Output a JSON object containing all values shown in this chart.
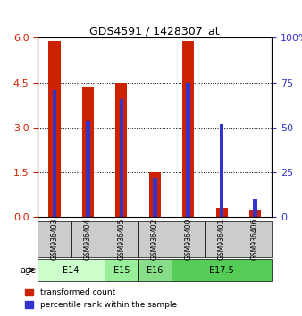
{
  "title": "GDS4591 / 1428307_at",
  "samples": [
    "GSM936403",
    "GSM936404",
    "GSM936405",
    "GSM936402",
    "GSM936400",
    "GSM936401",
    "GSM936406"
  ],
  "transformed_count": [
    5.9,
    4.35,
    4.5,
    1.5,
    5.9,
    0.3,
    0.25
  ],
  "percentile_rank": [
    71,
    54,
    66,
    22,
    75,
    52,
    10
  ],
  "ylim_left": [
    0,
    6
  ],
  "yticks_left": [
    0,
    1.5,
    3,
    4.5,
    6
  ],
  "ylim_right": [
    0,
    100
  ],
  "yticks_right": [
    0,
    25,
    50,
    75,
    100
  ],
  "age_groups": [
    {
      "label": "E14",
      "samples": [
        "GSM936403",
        "GSM936404"
      ],
      "color": "#ccffcc"
    },
    {
      "label": "E15",
      "samples": [
        "GSM936405"
      ],
      "color": "#99ee99"
    },
    {
      "label": "E16",
      "samples": [
        "GSM936402"
      ],
      "color": "#88dd88"
    },
    {
      "label": "E17.5",
      "samples": [
        "GSM936400",
        "GSM936401",
        "GSM936406"
      ],
      "color": "#55cc55"
    }
  ],
  "bar_width": 0.35,
  "red_color": "#cc2200",
  "blue_color": "#3333cc",
  "bg_color": "#cccccc",
  "legend_red": "transformed count",
  "legend_blue": "percentile rank within the sample",
  "age_label": "age"
}
